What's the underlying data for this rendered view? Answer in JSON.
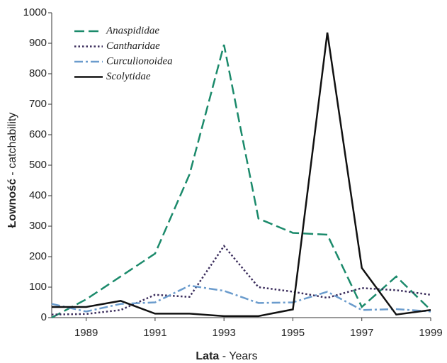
{
  "chart_data": {
    "type": "line",
    "x": [
      1988,
      1989,
      1990,
      1991,
      1992,
      1993,
      1994,
      1995,
      1996,
      1997,
      1998,
      1999
    ],
    "series": [
      {
        "name": "Anaspididae",
        "color": "#1b8a6b",
        "dash": "dashed",
        "values": [
          0,
          60,
          135,
          210,
          470,
          895,
          325,
          278,
          272,
          35,
          135,
          25
        ]
      },
      {
        "name": "Cantharidae",
        "color": "#3b2d5c",
        "dash": "dotted",
        "values": [
          10,
          12,
          25,
          75,
          68,
          235,
          100,
          85,
          65,
          97,
          90,
          75
        ]
      },
      {
        "name": "Curculionoidea",
        "color": "#6b9ccd",
        "dash": "dashdot",
        "values": [
          45,
          20,
          45,
          50,
          105,
          88,
          48,
          50,
          85,
          25,
          28,
          20
        ]
      },
      {
        "name": "Scolytidae",
        "color": "#111111",
        "dash": "solid",
        "values": [
          35,
          35,
          55,
          13,
          13,
          5,
          5,
          27,
          935,
          163,
          10,
          25
        ]
      }
    ],
    "xlim": [
      1988,
      1999
    ],
    "xticks": [
      1989,
      1991,
      1993,
      1995,
      1997,
      1999
    ],
    "ylim": [
      0,
      1000
    ],
    "yticks": [
      0,
      100,
      200,
      300,
      400,
      500,
      600,
      700,
      800,
      900,
      1000
    ],
    "xlabel": {
      "bold": "Lata",
      "rest": " - Years"
    },
    "ylabel": {
      "bold": "Łowność",
      "rest": " - catchability"
    },
    "grid": false,
    "legend": "upper left"
  }
}
